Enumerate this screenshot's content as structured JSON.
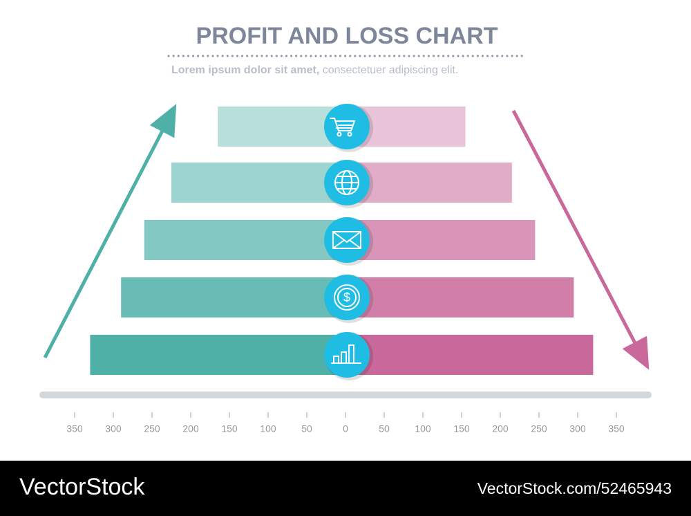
{
  "chart_data": {
    "type": "butterfly",
    "title": "PROFIT AND LOSS CHART",
    "subtitle_bold": "Lorem ipsum dolor sit amet,",
    "subtitle": "consectetuer adipiscing elit.",
    "series": [
      {
        "color": "#4fb0a8",
        "side": "left",
        "values": [
          165,
          225,
          260,
          290,
          330
        ]
      },
      {
        "color": "#c9689a",
        "side": "right",
        "values": [
          155,
          215,
          245,
          295,
          320
        ]
      }
    ],
    "xlim": [
      0,
      400
    ],
    "xticks": [
      0,
      50,
      100,
      150,
      200,
      250,
      300,
      350
    ],
    "mirrored": true,
    "watermark": "VectorStock",
    "watermark_url": "VectorStock.com/52465943"
  }
}
